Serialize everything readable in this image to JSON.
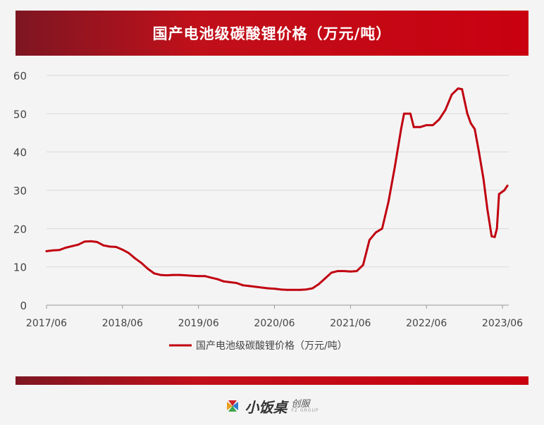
{
  "header": {
    "title": "国产电池级碳酸锂价格（万元/吨）"
  },
  "logo": {
    "brand": "小饭桌",
    "sub": "创服",
    "sub_en": "FZ GROUP"
  },
  "colors": {
    "accent": "#c00010",
    "line": "#c00010",
    "grid": "#d9d9d9"
  },
  "chart_data": {
    "type": "line",
    "title": "国产电池级碳酸锂价格（万元/吨）",
    "xlabel": "",
    "ylabel": "",
    "x_ticks": [
      "2017/06",
      "2018/06",
      "2019/06",
      "2020/06",
      "2021/06",
      "2022/06",
      "2023/06"
    ],
    "y_ticks": [
      0,
      10,
      20,
      30,
      40,
      50,
      60
    ],
    "ylim": [
      0,
      60
    ],
    "xlim": [
      "2017/06",
      "2023/07"
    ],
    "grid": true,
    "legend_position": "bottom-center",
    "series": [
      {
        "name": "国产电池级碳酸锂价格（万元/吨）",
        "color": "#c00010",
        "points": [
          [
            "2017/06/01",
            14.1
          ],
          [
            "2017/07/01",
            14.3
          ],
          [
            "2017/08/01",
            14.4
          ],
          [
            "2017/09/01",
            15.0
          ],
          [
            "2017/10/01",
            15.4
          ],
          [
            "2017/11/01",
            15.8
          ],
          [
            "2017/12/01",
            16.6
          ],
          [
            "2018/01/01",
            16.7
          ],
          [
            "2018/02/01",
            16.5
          ],
          [
            "2018/03/01",
            15.6
          ],
          [
            "2018/04/01",
            15.3
          ],
          [
            "2018/05/01",
            15.2
          ],
          [
            "2018/06/01",
            14.5
          ],
          [
            "2018/07/01",
            13.6
          ],
          [
            "2018/08/01",
            12.2
          ],
          [
            "2018/09/01",
            11.0
          ],
          [
            "2018/10/01",
            9.5
          ],
          [
            "2018/11/01",
            8.3
          ],
          [
            "2018/12/01",
            7.9
          ],
          [
            "2019/01/01",
            7.8
          ],
          [
            "2019/02/01",
            7.9
          ],
          [
            "2019/03/01",
            7.9
          ],
          [
            "2019/04/01",
            7.8
          ],
          [
            "2019/05/01",
            7.7
          ],
          [
            "2019/06/01",
            7.6
          ],
          [
            "2019/07/01",
            7.6
          ],
          [
            "2019/08/01",
            7.2
          ],
          [
            "2019/09/01",
            6.8
          ],
          [
            "2019/10/01",
            6.2
          ],
          [
            "2019/11/01",
            6.0
          ],
          [
            "2019/12/01",
            5.8
          ],
          [
            "2020/01/01",
            5.2
          ],
          [
            "2020/02/01",
            5.0
          ],
          [
            "2020/03/01",
            4.8
          ],
          [
            "2020/04/01",
            4.6
          ],
          [
            "2020/05/01",
            4.4
          ],
          [
            "2020/06/01",
            4.3
          ],
          [
            "2020/07/01",
            4.1
          ],
          [
            "2020/08/01",
            4.0
          ],
          [
            "2020/09/01",
            4.0
          ],
          [
            "2020/10/01",
            4.0
          ],
          [
            "2020/11/01",
            4.1
          ],
          [
            "2020/12/01",
            4.4
          ],
          [
            "2021/01/01",
            5.5
          ],
          [
            "2021/02/01",
            7.0
          ],
          [
            "2021/03/01",
            8.5
          ],
          [
            "2021/04/01",
            8.9
          ],
          [
            "2021/05/01",
            8.9
          ],
          [
            "2021/06/01",
            8.8
          ],
          [
            "2021/07/01",
            8.9
          ],
          [
            "2021/08/01",
            10.5
          ],
          [
            "2021/09/01",
            17.0
          ],
          [
            "2021/10/01",
            19.0
          ],
          [
            "2021/11/01",
            20.0
          ],
          [
            "2021/12/01",
            27.0
          ],
          [
            "2022/01/01",
            36.0
          ],
          [
            "2022/02/01",
            46.0
          ],
          [
            "2022/02/15",
            50.0
          ],
          [
            "2022/03/15",
            50.0
          ],
          [
            "2022/04/01",
            46.5
          ],
          [
            "2022/05/01",
            46.5
          ],
          [
            "2022/06/01",
            47.0
          ],
          [
            "2022/07/01",
            47.0
          ],
          [
            "2022/08/01",
            48.5
          ],
          [
            "2022/09/01",
            51.0
          ],
          [
            "2022/10/01",
            55.0
          ],
          [
            "2022/11/01",
            56.6
          ],
          [
            "2022/11/20",
            56.4
          ],
          [
            "2022/12/15",
            50.0
          ],
          [
            "2023/01/01",
            47.5
          ],
          [
            "2023/01/20",
            46.0
          ],
          [
            "2023/02/10",
            40.0
          ],
          [
            "2023/03/01",
            33.0
          ],
          [
            "2023/03/20",
            25.0
          ],
          [
            "2023/04/10",
            18.0
          ],
          [
            "2023/04/25",
            17.8
          ],
          [
            "2023/05/05",
            20.0
          ],
          [
            "2023/05/15",
            29.0
          ],
          [
            "2023/06/10",
            30.0
          ],
          [
            "2023/06/25",
            31.2
          ]
        ]
      }
    ]
  }
}
